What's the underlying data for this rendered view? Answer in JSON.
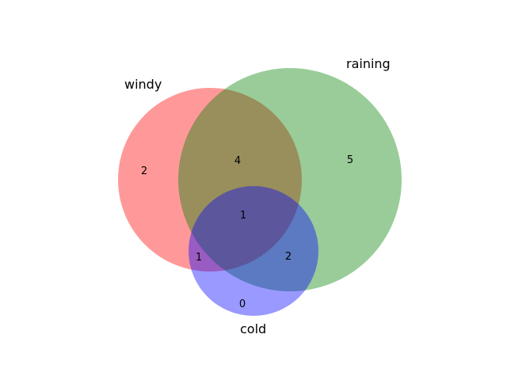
{
  "sets": [
    {
      "id": "windy",
      "label": "windy",
      "color": "#ff0000"
    },
    {
      "id": "raining",
      "label": "raining",
      "color": "#008000"
    },
    {
      "id": "cold",
      "label": "cold",
      "color": "#0000ff"
    }
  ],
  "regions": {
    "windy_only": "2",
    "windy_raining": "4",
    "raining_only": "5",
    "all_three": "1",
    "windy_cold": "1",
    "raining_cold": "2",
    "cold_only": "0"
  }
}
